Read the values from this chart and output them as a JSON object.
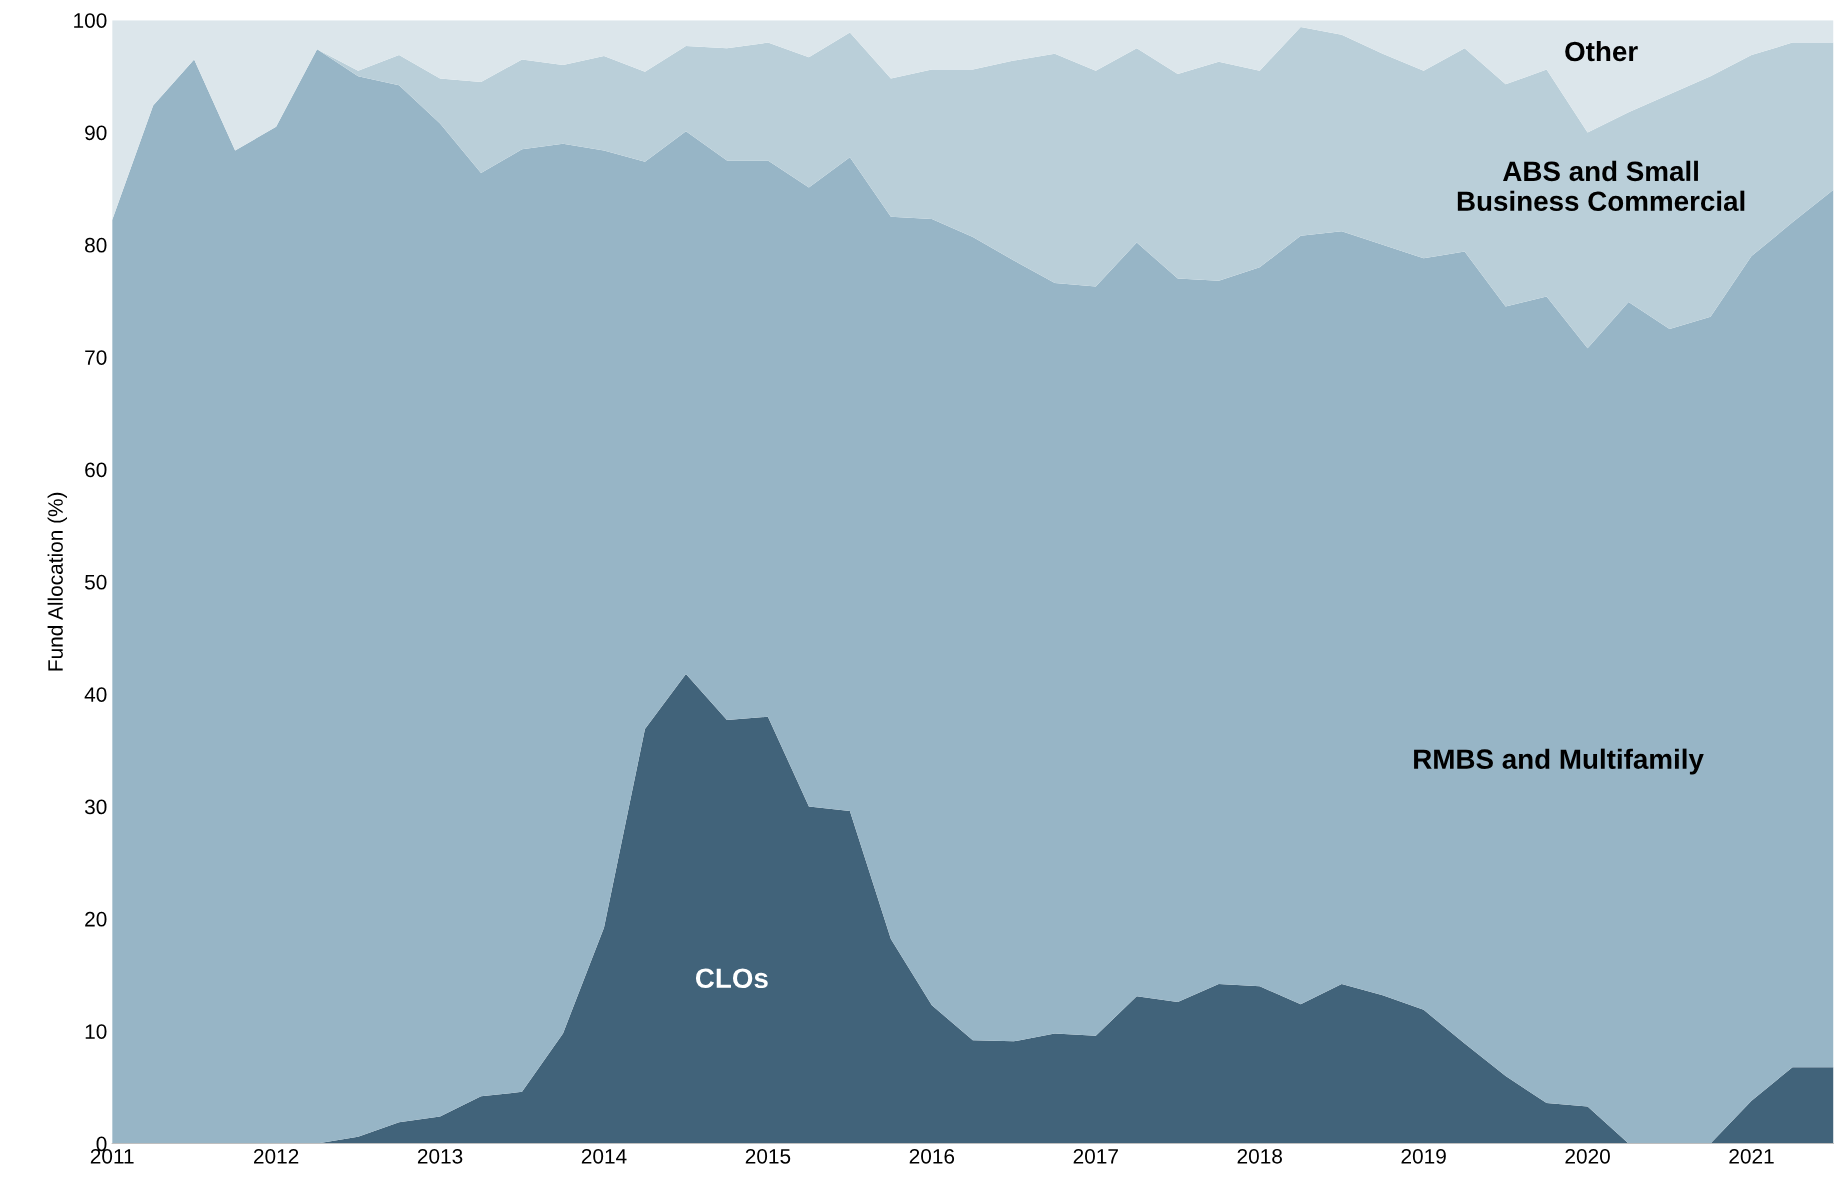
{
  "chart_data": {
    "type": "area",
    "stacked": true,
    "ylabel": "Fund Allocation (%)",
    "x": [
      2011.0,
      2011.25,
      2011.5,
      2011.75,
      2012.0,
      2012.25,
      2012.5,
      2012.75,
      2013.0,
      2013.25,
      2013.5,
      2013.75,
      2014.0,
      2014.25,
      2014.5,
      2014.75,
      2015.0,
      2015.25,
      2015.5,
      2015.75,
      2016.0,
      2016.25,
      2016.5,
      2016.75,
      2017.0,
      2017.25,
      2017.5,
      2017.75,
      2018.0,
      2018.25,
      2018.5,
      2018.75,
      2019.0,
      2019.25,
      2019.5,
      2019.75,
      2020.0,
      2020.25,
      2020.5,
      2020.75,
      2021.0,
      2021.25,
      2021.5
    ],
    "xlim": [
      2011,
      2021.5
    ],
    "xticks": [
      2011,
      2012,
      2013,
      2014,
      2015,
      2016,
      2017,
      2018,
      2019,
      2020,
      2021
    ],
    "ylim": [
      0,
      100
    ],
    "yticks": [
      0,
      10,
      20,
      30,
      40,
      50,
      60,
      70,
      80,
      90,
      100
    ],
    "grid": false,
    "legend": false,
    "series": [
      {
        "name": "CLOs",
        "color": "#41637a",
        "values": [
          0,
          0,
          0,
          0,
          0,
          0,
          0.6,
          1.9,
          2.4,
          4.2,
          4.6,
          9.8,
          19.2,
          36.9,
          41.8,
          37.7,
          38.0,
          30.0,
          29.6,
          18.2,
          12.3,
          9.2,
          9.1,
          9.8,
          9.6,
          13.1,
          12.6,
          14.2,
          14.0,
          12.4,
          14.2,
          13.2,
          11.9,
          8.9,
          6.0,
          3.6,
          3.3,
          0,
          0,
          0,
          3.8,
          6.8,
          6.8
        ]
      },
      {
        "name": "RMBS and Multifamily",
        "color": "#97b5c6",
        "values": [
          82.2,
          92.4,
          96.5,
          88.4,
          90.5,
          97.4,
          94.4,
          92.3,
          88.4,
          82.2,
          83.9,
          79.2,
          69.2,
          50.5,
          48.3,
          49.8,
          49.5,
          55.1,
          58.2,
          64.3,
          70.0,
          71.5,
          69.5,
          66.8,
          66.7,
          67.1,
          64.4,
          62.6,
          64.0,
          68.4,
          67.0,
          66.8,
          66.9,
          70.5,
          68.5,
          71.8,
          67.5,
          74.9,
          72.5,
          73.6,
          75.2,
          75.2,
          78.1
        ]
      },
      {
        "name": "ABS and Small\nBusiness Commercial",
        "color": "#bacfd9",
        "values": [
          0,
          0,
          0,
          0,
          0,
          0,
          0.5,
          2.7,
          4.0,
          8.1,
          8.0,
          7.0,
          8.4,
          8.0,
          7.6,
          10.0,
          10.5,
          11.6,
          11.1,
          12.3,
          13.3,
          14.9,
          17.8,
          20.4,
          19.2,
          17.3,
          18.2,
          19.5,
          17.5,
          18.6,
          17.5,
          17.0,
          16.7,
          18.1,
          19.8,
          20.2,
          19.2,
          16.9,
          20.9,
          21.4,
          17.9,
          16.0,
          13.1
        ]
      },
      {
        "name": "Other",
        "color": "#dce6eb",
        "values": [
          17.8,
          7.6,
          3.5,
          11.6,
          9.5,
          2.6,
          4.5,
          3.1,
          5.2,
          5.5,
          3.5,
          4.0,
          3.2,
          4.6,
          2.3,
          2.5,
          2.0,
          3.3,
          1.1,
          5.2,
          4.4,
          4.4,
          3.6,
          3.0,
          4.5,
          2.5,
          4.8,
          3.7,
          4.5,
          0.6,
          1.3,
          3.0,
          4.5,
          2.5,
          5.7,
          4.4,
          10.0,
          8.2,
          6.6,
          5.0,
          3.1,
          2.0,
          2.0
        ]
      }
    ]
  }
}
